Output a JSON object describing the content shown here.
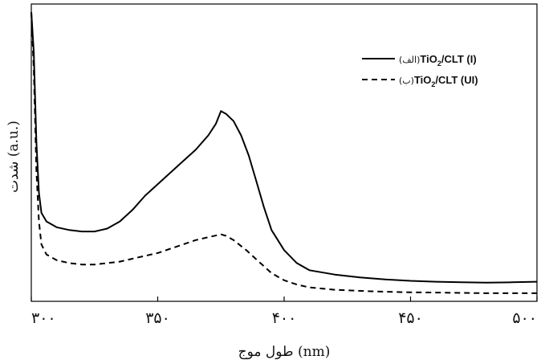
{
  "chart_data": {
    "type": "line",
    "xlabel": "طول موج (nm)",
    "ylabel": "شدت (a.u.)",
    "xlim": [
      300,
      500
    ],
    "x_ticks": [
      300,
      350,
      400,
      450,
      500
    ],
    "x_tick_labels": [
      "۳۰۰",
      "۳۵۰",
      "۴۰۰",
      "۴۵۰",
      "۵۰۰"
    ],
    "y_ticks_shown": false,
    "ylim": [
      0,
      1
    ],
    "legend_position": "top-right",
    "series": [
      {
        "name_parts": [
          "(الف)",
          "TiO",
          "2",
          "/CLT (I)"
        ],
        "style": "solid",
        "color": "#000000",
        "points": [
          [
            300,
            1.0
          ],
          [
            301,
            0.86
          ],
          [
            302,
            0.55
          ],
          [
            303,
            0.37
          ],
          [
            304,
            0.3
          ],
          [
            306,
            0.27
          ],
          [
            310,
            0.25
          ],
          [
            315,
            0.24
          ],
          [
            320,
            0.235
          ],
          [
            325,
            0.235
          ],
          [
            330,
            0.245
          ],
          [
            335,
            0.27
          ],
          [
            340,
            0.31
          ],
          [
            345,
            0.36
          ],
          [
            350,
            0.4
          ],
          [
            355,
            0.44
          ],
          [
            360,
            0.48
          ],
          [
            365,
            0.52
          ],
          [
            370,
            0.57
          ],
          [
            373,
            0.61
          ],
          [
            375,
            0.655
          ],
          [
            377,
            0.645
          ],
          [
            380,
            0.62
          ],
          [
            383,
            0.57
          ],
          [
            386,
            0.5
          ],
          [
            389,
            0.41
          ],
          [
            392,
            0.32
          ],
          [
            395,
            0.24
          ],
          [
            400,
            0.17
          ],
          [
            405,
            0.125
          ],
          [
            410,
            0.1
          ],
          [
            420,
            0.085
          ],
          [
            430,
            0.075
          ],
          [
            440,
            0.068
          ],
          [
            450,
            0.063
          ],
          [
            460,
            0.06
          ],
          [
            470,
            0.058
          ],
          [
            480,
            0.057
          ],
          [
            490,
            0.058
          ],
          [
            500,
            0.06
          ]
        ]
      },
      {
        "name_parts": [
          "(ب)",
          "TiO",
          "2",
          "/CLT (UI)"
        ],
        "style": "dashed",
        "color": "#000000",
        "points": [
          [
            300,
            1.0
          ],
          [
            301,
            0.8
          ],
          [
            302,
            0.45
          ],
          [
            303,
            0.27
          ],
          [
            304,
            0.19
          ],
          [
            306,
            0.155
          ],
          [
            310,
            0.135
          ],
          [
            315,
            0.125
          ],
          [
            320,
            0.12
          ],
          [
            325,
            0.12
          ],
          [
            330,
            0.125
          ],
          [
            335,
            0.13
          ],
          [
            340,
            0.14
          ],
          [
            345,
            0.15
          ],
          [
            350,
            0.16
          ],
          [
            355,
            0.175
          ],
          [
            360,
            0.19
          ],
          [
            365,
            0.205
          ],
          [
            370,
            0.215
          ],
          [
            375,
            0.225
          ],
          [
            377,
            0.22
          ],
          [
            380,
            0.205
          ],
          [
            385,
            0.17
          ],
          [
            390,
            0.13
          ],
          [
            395,
            0.09
          ],
          [
            400,
            0.065
          ],
          [
            405,
            0.05
          ],
          [
            410,
            0.04
          ],
          [
            420,
            0.032
          ],
          [
            430,
            0.028
          ],
          [
            440,
            0.025
          ],
          [
            450,
            0.023
          ],
          [
            460,
            0.022
          ],
          [
            470,
            0.021
          ],
          [
            480,
            0.02
          ],
          [
            490,
            0.02
          ],
          [
            500,
            0.02
          ]
        ]
      }
    ]
  }
}
